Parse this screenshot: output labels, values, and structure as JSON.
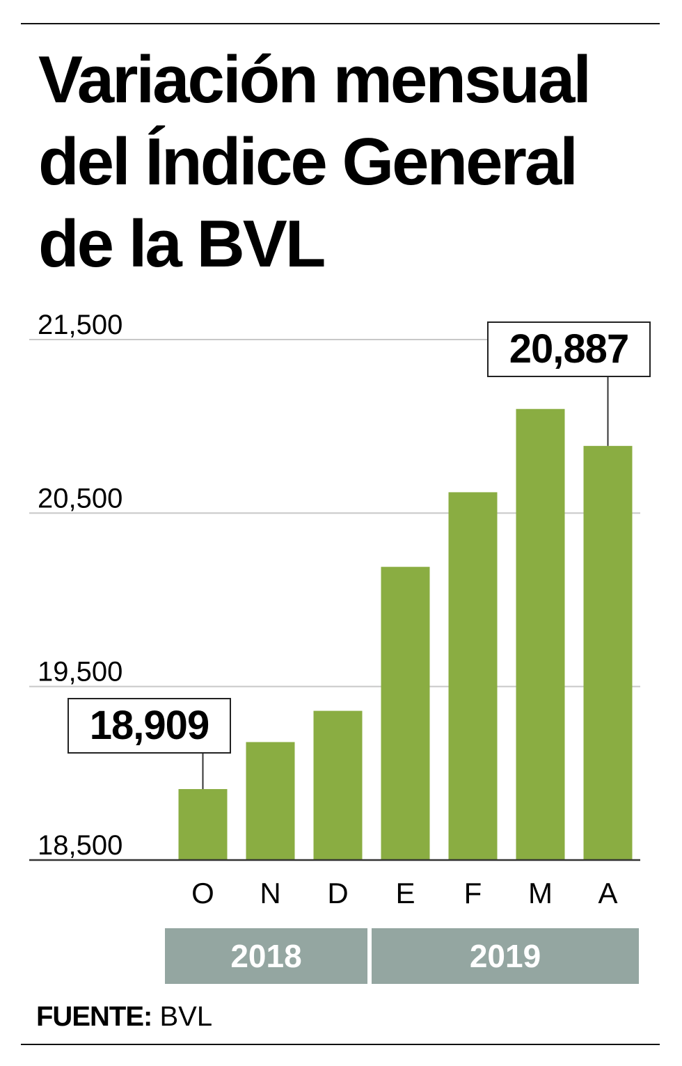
{
  "title_lines": [
    "Variación mensual",
    "del Índice General",
    "de la BVL"
  ],
  "source": {
    "label": "FUENTE:",
    "value": "BVL"
  },
  "colors": {
    "bar": "#8aad42",
    "grid": "#c8c8c8",
    "axis": "#333333",
    "year_band": "#94a6a1",
    "year_text": "#ffffff"
  },
  "chart_data": {
    "type": "bar",
    "title": "Variación mensual del Índice General de la BVL",
    "categories": [
      "O",
      "N",
      "D",
      "E",
      "F",
      "M",
      "A"
    ],
    "values": [
      18909,
      19180,
      19360,
      20190,
      20620,
      21100,
      20887
    ],
    "ylim": [
      18500,
      21500
    ],
    "yticks": [
      {
        "value": 18500,
        "label": "18,500"
      },
      {
        "value": 19500,
        "label": "19,500"
      },
      {
        "value": 20500,
        "label": "20,500"
      },
      {
        "value": 21500,
        "label": "21,500"
      }
    ],
    "grid": true,
    "callouts": [
      {
        "category_index": 0,
        "label": "18,909"
      },
      {
        "category_index": 6,
        "label": "20,887"
      }
    ],
    "year_groups": [
      {
        "label": "2018",
        "start": 0,
        "end": 2
      },
      {
        "label": "2019",
        "start": 3,
        "end": 6
      }
    ]
  }
}
